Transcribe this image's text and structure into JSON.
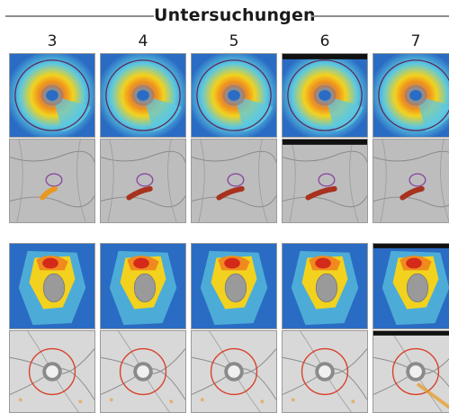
{
  "header": {
    "title": "Untersuchungen"
  },
  "columns": [
    "3",
    "4",
    "5",
    "6",
    "7"
  ],
  "colors": {
    "map_blue": "#2a6cc4",
    "map_cyan": "#5cc8e0",
    "map_yellow": "#f2d21e",
    "map_orange": "#f08a1e",
    "map_red": "#d42a1a",
    "fundus_gray": "#bdbdbd",
    "defect_orange": "#e8981e",
    "defect_red": "#a8321e",
    "ring_purple": "#8a4aa0",
    "ring_red": "#d8402a"
  }
}
